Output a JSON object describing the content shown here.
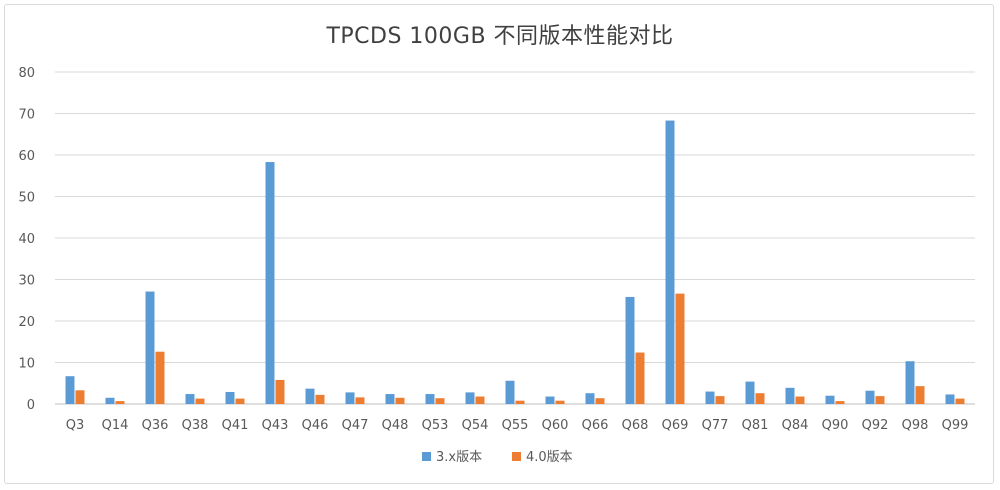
{
  "chart_data": {
    "type": "bar",
    "title": "TPCDS 100GB 不同版本性能对比",
    "xlabel": "",
    "ylabel": "",
    "ylim": [
      0,
      80
    ],
    "yticks": [
      0,
      10,
      20,
      30,
      40,
      50,
      60,
      70,
      80
    ],
    "grid": true,
    "legend_position": "bottom",
    "categories": [
      "Q3",
      "Q14",
      "Q36",
      "Q38",
      "Q41",
      "Q43",
      "Q46",
      "Q47",
      "Q48",
      "Q53",
      "Q54",
      "Q55",
      "Q60",
      "Q66",
      "Q68",
      "Q69",
      "Q77",
      "Q81",
      "Q84",
      "Q90",
      "Q92",
      "Q98",
      "Q99"
    ],
    "series": [
      {
        "name": "3.x版本",
        "color": "#5b9bd5",
        "values": [
          6.7,
          1.5,
          27.1,
          2.4,
          2.9,
          58.3,
          3.7,
          2.8,
          2.4,
          2.4,
          2.8,
          5.6,
          1.8,
          2.6,
          25.8,
          68.3,
          3.0,
          5.4,
          3.9,
          2.0,
          3.2,
          10.3,
          2.3
        ]
      },
      {
        "name": "4.0版本",
        "color": "#ed7d31",
        "values": [
          3.3,
          0.7,
          12.6,
          1.3,
          1.3,
          5.8,
          2.2,
          1.6,
          1.5,
          1.4,
          1.8,
          0.8,
          0.8,
          1.4,
          12.4,
          26.6,
          1.9,
          2.6,
          1.8,
          0.7,
          1.9,
          4.3,
          1.3
        ]
      }
    ]
  }
}
